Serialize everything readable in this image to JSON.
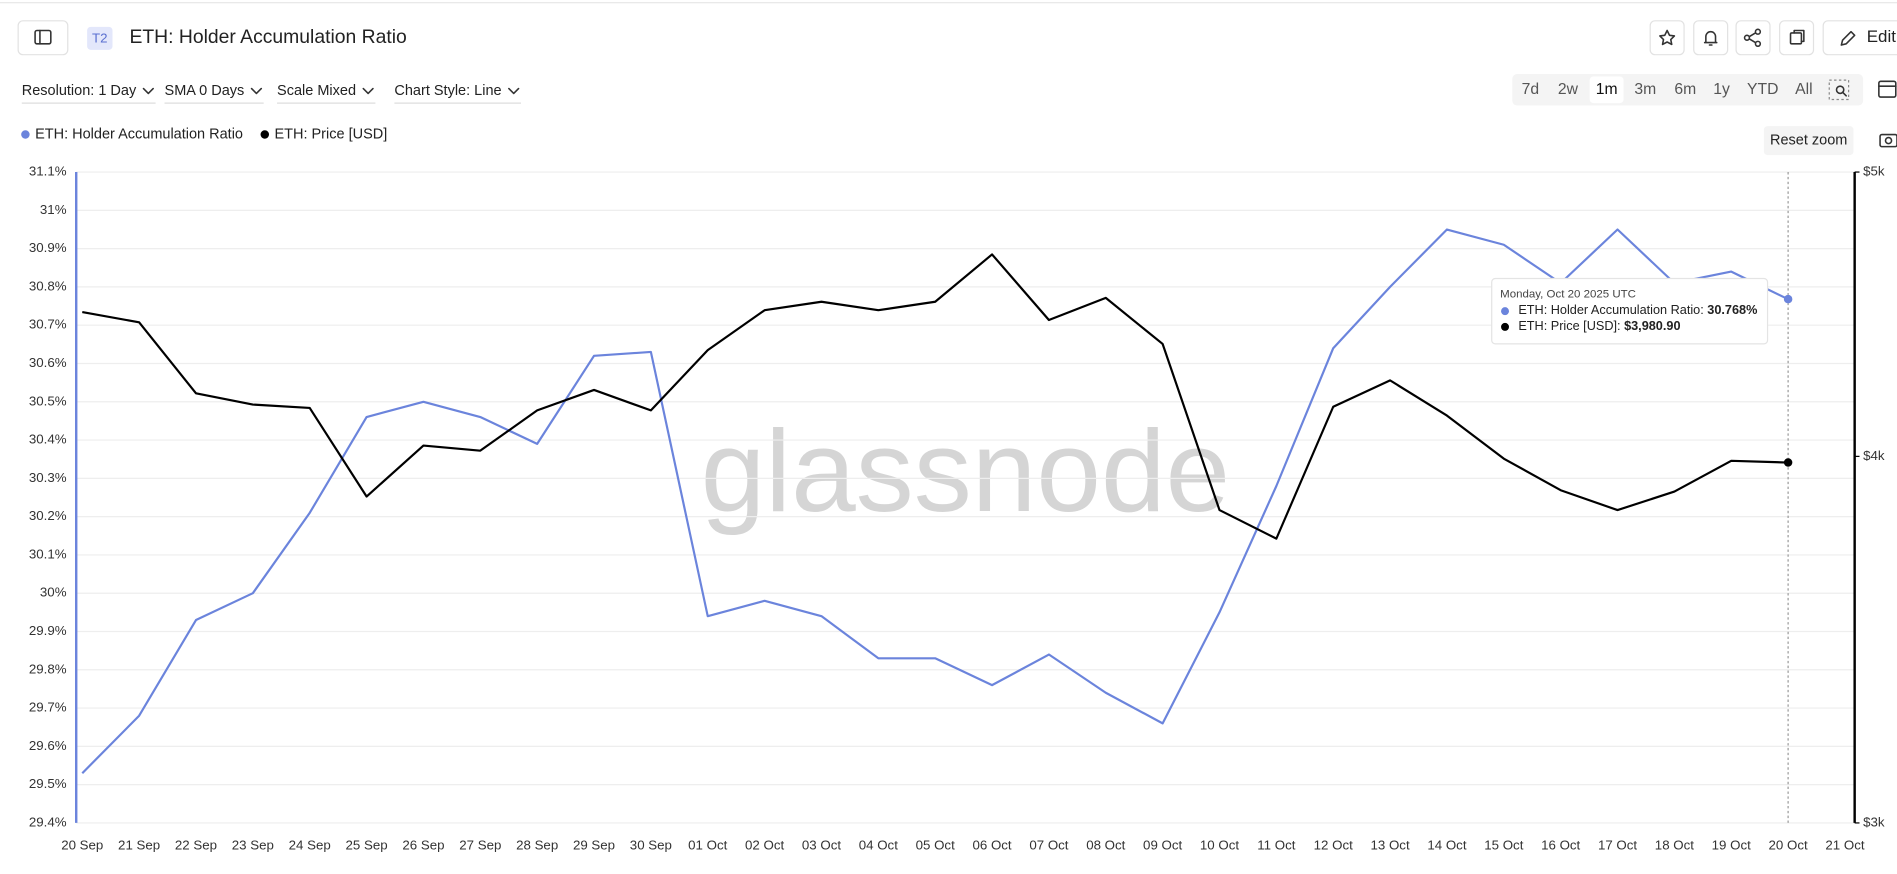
{
  "header": {
    "badge": "T2",
    "title": "ETH: Holder Accumulation Ratio",
    "edit": "Edit"
  },
  "toolbar": {
    "options": [
      "Resolution: 1 Day",
      "SMA 0 Days",
      "Scale Mixed",
      "Chart Style: Line"
    ],
    "ranges": [
      "7d",
      "2w",
      "1m",
      "3m",
      "6m",
      "1y",
      "YTD",
      "All"
    ],
    "active_range": 2,
    "reset_zoom": "Reset zoom"
  },
  "chart_data": {
    "type": "line",
    "categories": [
      "20 Sep",
      "21 Sep",
      "22 Sep",
      "23 Sep",
      "24 Sep",
      "25 Sep",
      "26 Sep",
      "27 Sep",
      "28 Sep",
      "29 Sep",
      "30 Sep",
      "01 Oct",
      "02 Oct",
      "03 Oct",
      "04 Oct",
      "05 Oct",
      "06 Oct",
      "07 Oct",
      "08 Oct",
      "09 Oct",
      "10 Oct",
      "11 Oct",
      "12 Oct",
      "13 Oct",
      "14 Oct",
      "15 Oct",
      "16 Oct",
      "17 Oct",
      "18 Oct",
      "19 Oct",
      "20 Oct",
      "21 Oct"
    ],
    "series": [
      {
        "name": "ETH: Holder Accumulation Ratio",
        "color": "#6b84dc",
        "values": [
          29.53,
          29.68,
          29.93,
          30.0,
          30.21,
          30.46,
          30.5,
          30.46,
          30.39,
          30.62,
          30.63,
          29.94,
          29.98,
          29.94,
          29.83,
          29.83,
          29.76,
          29.84,
          29.74,
          29.66,
          29.95,
          30.28,
          30.64,
          30.8,
          30.95,
          30.91,
          30.81,
          30.95,
          30.81,
          30.84,
          30.768,
          null
        ]
      },
      {
        "name": "ETH: Price [USD]",
        "color": "#000000",
        "axis": "y2",
        "values": [
          4480,
          4444,
          4203,
          4166,
          4155,
          3876,
          4034,
          4018,
          4147,
          4214,
          4147,
          4348,
          4486,
          4516,
          4486,
          4516,
          4687,
          4452,
          4530,
          4369,
          3835,
          3750,
          4159,
          4246,
          4130,
          3993,
          3895,
          3835,
          3891,
          3986,
          3980.9,
          null
        ]
      }
    ],
    "ylim": [
      29.4,
      31.1
    ],
    "yticks": [
      {
        "value": 29.4,
        "label": "29.4%"
      },
      {
        "value": 29.5,
        "label": "29.5%"
      },
      {
        "value": 29.6,
        "label": "29.6%"
      },
      {
        "value": 29.7,
        "label": "29.7%"
      },
      {
        "value": 29.8,
        "label": "29.8%"
      },
      {
        "value": 29.9,
        "label": "29.9%"
      },
      {
        "value": 30.0,
        "label": "30%"
      },
      {
        "value": 30.1,
        "label": "30.1%"
      },
      {
        "value": 30.2,
        "label": "30.2%"
      },
      {
        "value": 30.3,
        "label": "30.3%"
      },
      {
        "value": 30.4,
        "label": "30.4%"
      },
      {
        "value": 30.5,
        "label": "30.5%"
      },
      {
        "value": 30.6,
        "label": "30.6%"
      },
      {
        "value": 30.7,
        "label": "30.7%"
      },
      {
        "value": 30.8,
        "label": "30.8%"
      },
      {
        "value": 30.9,
        "label": "30.9%"
      },
      {
        "value": 31.0,
        "label": "31%"
      },
      {
        "value": 31.1,
        "label": "31.1%"
      }
    ],
    "y2lim": [
      3000,
      5000
    ],
    "y2scale": "log",
    "y2ticks": [
      {
        "value": 3000,
        "label": "$3k"
      },
      {
        "value": 4000,
        "label": "$4k"
      },
      {
        "value": 5000,
        "label": "$5k"
      }
    ],
    "grid": true,
    "watermark": "glassnode",
    "tooltip": {
      "date": "Monday, Oct 20 2025 UTC",
      "items": [
        {
          "label": "ETH: Holder Accumulation Ratio: ",
          "value": "30.768%"
        },
        {
          "label": "ETH: Price [USD]: ",
          "value": "$3,980.90"
        }
      ]
    }
  }
}
